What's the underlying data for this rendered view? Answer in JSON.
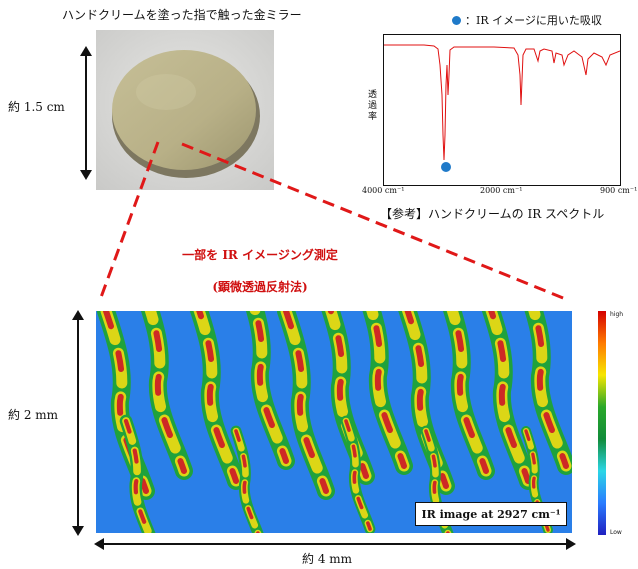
{
  "top_title": "ハンドクリームを塗った指で触った金ミラー",
  "mirror_size_label": "約 1.5 cm",
  "spectrum": {
    "legend": "：IR イメージに用いた吸収",
    "ylabel": [
      "透",
      "過",
      "率"
    ],
    "ticks": [
      "4000 cm⁻¹",
      "2000 cm⁻¹",
      "900 cm⁻¹"
    ],
    "caption": "【参考】ハンドクリームの IR スペクトル",
    "line_color": "#e01010",
    "marker_color": "#1f7ac9"
  },
  "measurement_title": "一部を IR イメージング測定",
  "measurement_subtitle": "(顕微透過反射法)",
  "ir_image": {
    "label": "IR image at 2927 cm⁻¹",
    "height_label": "約 2 mm",
    "width_label": "約 4 mm"
  },
  "colorbar": {
    "high_label": "high",
    "low_label": "Low"
  },
  "colors": {
    "annotation_red": "#d01010",
    "dash_red": "#e01818"
  }
}
